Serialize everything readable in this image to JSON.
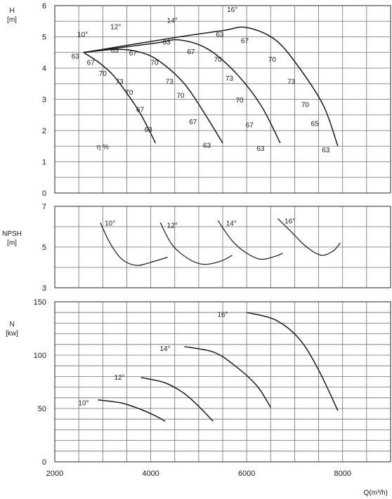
{
  "chart_data": [
    {
      "type": "line",
      "panel": "H",
      "ylabel": "H\n[m]",
      "ylim": [
        0,
        6
      ],
      "yticks": [
        0,
        1,
        2,
        3,
        4,
        5,
        6
      ],
      "xlim": [
        2000,
        9000
      ],
      "grid": true,
      "efficiency_label": "η %",
      "series": [
        {
          "name": "10°",
          "x": [
            2600,
            2900,
            3200,
            3500,
            3800,
            4100
          ],
          "y": [
            4.5,
            4.2,
            3.8,
            3.2,
            2.5,
            1.6
          ]
        },
        {
          "name": "12°",
          "x": [
            2600,
            3300,
            3800,
            4200,
            4700,
            5100,
            5500
          ],
          "y": [
            4.5,
            4.6,
            4.5,
            4.2,
            3.5,
            2.6,
            1.6
          ]
        },
        {
          "name": "14°",
          "x": [
            2600,
            4100,
            4600,
            5200,
            5800,
            6300,
            6700
          ],
          "y": [
            4.5,
            4.8,
            4.9,
            4.6,
            3.8,
            2.8,
            1.6
          ]
        },
        {
          "name": "16°",
          "x": [
            2600,
            4600,
            5500,
            6000,
            6600,
            7100,
            7600,
            7900
          ],
          "y": [
            4.5,
            5.0,
            5.2,
            5.3,
            4.9,
            4.0,
            2.8,
            1.5
          ]
        }
      ],
      "annotations": [
        {
          "text": "10°",
          "x": 2580,
          "y": 5.0
        },
        {
          "text": "12°",
          "x": 3270,
          "y": 5.25
        },
        {
          "text": "14°",
          "x": 4450,
          "y": 5.45
        },
        {
          "text": "16°",
          "x": 5700,
          "y": 5.8
        },
        {
          "text": "63",
          "x": 2430,
          "y": 4.3
        },
        {
          "text": "67",
          "x": 2750,
          "y": 4.1
        },
        {
          "text": "70",
          "x": 3000,
          "y": 3.75
        },
        {
          "text": "73",
          "x": 3350,
          "y": 3.5
        },
        {
          "text": "70",
          "x": 3550,
          "y": 3.15
        },
        {
          "text": "67",
          "x": 3780,
          "y": 2.6
        },
        {
          "text": "63",
          "x": 3950,
          "y": 1.95
        },
        {
          "text": "63",
          "x": 3250,
          "y": 4.5
        },
        {
          "text": "67",
          "x": 3630,
          "y": 4.4
        },
        {
          "text": "70",
          "x": 4080,
          "y": 4.1
        },
        {
          "text": "73",
          "x": 4390,
          "y": 3.5
        },
        {
          "text": "70",
          "x": 4620,
          "y": 3.05
        },
        {
          "text": "67",
          "x": 4880,
          "y": 2.2
        },
        {
          "text": "63",
          "x": 5170,
          "y": 1.45
        },
        {
          "text": "63",
          "x": 4330,
          "y": 4.75
        },
        {
          "text": "67",
          "x": 4840,
          "y": 4.45
        },
        {
          "text": "70",
          "x": 5400,
          "y": 4.2
        },
        {
          "text": "73",
          "x": 5640,
          "y": 3.6
        },
        {
          "text": "70",
          "x": 5850,
          "y": 2.9
        },
        {
          "text": "67",
          "x": 6060,
          "y": 2.1
        },
        {
          "text": "63",
          "x": 6290,
          "y": 1.35
        },
        {
          "text": "63",
          "x": 5440,
          "y": 5.0
        },
        {
          "text": "67",
          "x": 5960,
          "y": 4.8
        },
        {
          "text": "70",
          "x": 6530,
          "y": 4.2
        },
        {
          "text": "73",
          "x": 6930,
          "y": 3.5
        },
        {
          "text": "70",
          "x": 7220,
          "y": 2.75
        },
        {
          "text": "65",
          "x": 7420,
          "y": 2.15
        },
        {
          "text": "63",
          "x": 7650,
          "y": 1.3
        },
        {
          "text": "η %",
          "x": 3000,
          "y": 1.4
        }
      ]
    },
    {
      "type": "line",
      "panel": "NPSH",
      "ylabel": "NPSH\n[m]",
      "ylim": [
        3,
        7
      ],
      "yticks": [
        3,
        5,
        7
      ],
      "xlim": [
        2000,
        9000
      ],
      "grid": true,
      "series": [
        {
          "name": "10°",
          "x": [
            2950,
            3150,
            3400,
            3700,
            4000,
            4350
          ],
          "y": [
            6.2,
            5.2,
            4.4,
            4.1,
            4.25,
            4.5
          ]
        },
        {
          "name": "12°",
          "x": [
            4200,
            4450,
            4800,
            5100,
            5450,
            5700
          ],
          "y": [
            6.2,
            5.1,
            4.4,
            4.15,
            4.3,
            4.6
          ]
        },
        {
          "name": "14°",
          "x": [
            5400,
            5700,
            6000,
            6300,
            6600,
            6750
          ],
          "y": [
            6.3,
            5.3,
            4.7,
            4.4,
            4.55,
            4.7
          ]
        },
        {
          "name": "16°",
          "x": [
            6650,
            6950,
            7250,
            7550,
            7800,
            7950
          ],
          "y": [
            6.4,
            5.7,
            5.0,
            4.6,
            4.8,
            5.2
          ]
        }
      ],
      "annotations": [
        {
          "text": "10°",
          "x": 3150,
          "y": 6.05
        },
        {
          "text": "12°",
          "x": 4450,
          "y": 5.95
        },
        {
          "text": "14°",
          "x": 5680,
          "y": 6.05
        },
        {
          "text": "16°",
          "x": 6900,
          "y": 6.15
        }
      ]
    },
    {
      "type": "line",
      "panel": "N",
      "ylabel": "N\n[kw]",
      "ylim": [
        0,
        150
      ],
      "yticks": [
        0,
        50,
        100,
        150
      ],
      "xlim": [
        2000,
        9000
      ],
      "xticks": [
        2000,
        4000,
        6000,
        8000
      ],
      "xlabel": "Q(m³/h)",
      "grid": true,
      "series": [
        {
          "name": "10°",
          "x": [
            2900,
            3400,
            3800,
            4100,
            4300
          ],
          "y": [
            58,
            55,
            49,
            43,
            38
          ]
        },
        {
          "name": "12°",
          "x": [
            3800,
            4300,
            4700,
            5000,
            5300
          ],
          "y": [
            79,
            74,
            64,
            52,
            38
          ]
        },
        {
          "name": "14°",
          "x": [
            4700,
            5300,
            5700,
            6200,
            6500
          ],
          "y": [
            108,
            103,
            92,
            72,
            51
          ]
        },
        {
          "name": "16°",
          "x": [
            6000,
            6600,
            7100,
            7500,
            7900
          ],
          "y": [
            140,
            133,
            115,
            86,
            48
          ]
        }
      ],
      "annotations": [
        {
          "text": "10°",
          "x": 2600,
          "y": 53
        },
        {
          "text": "12°",
          "x": 3350,
          "y": 77
        },
        {
          "text": "14°",
          "x": 4300,
          "y": 104
        },
        {
          "text": "16°",
          "x": 5500,
          "y": 136
        }
      ]
    }
  ]
}
